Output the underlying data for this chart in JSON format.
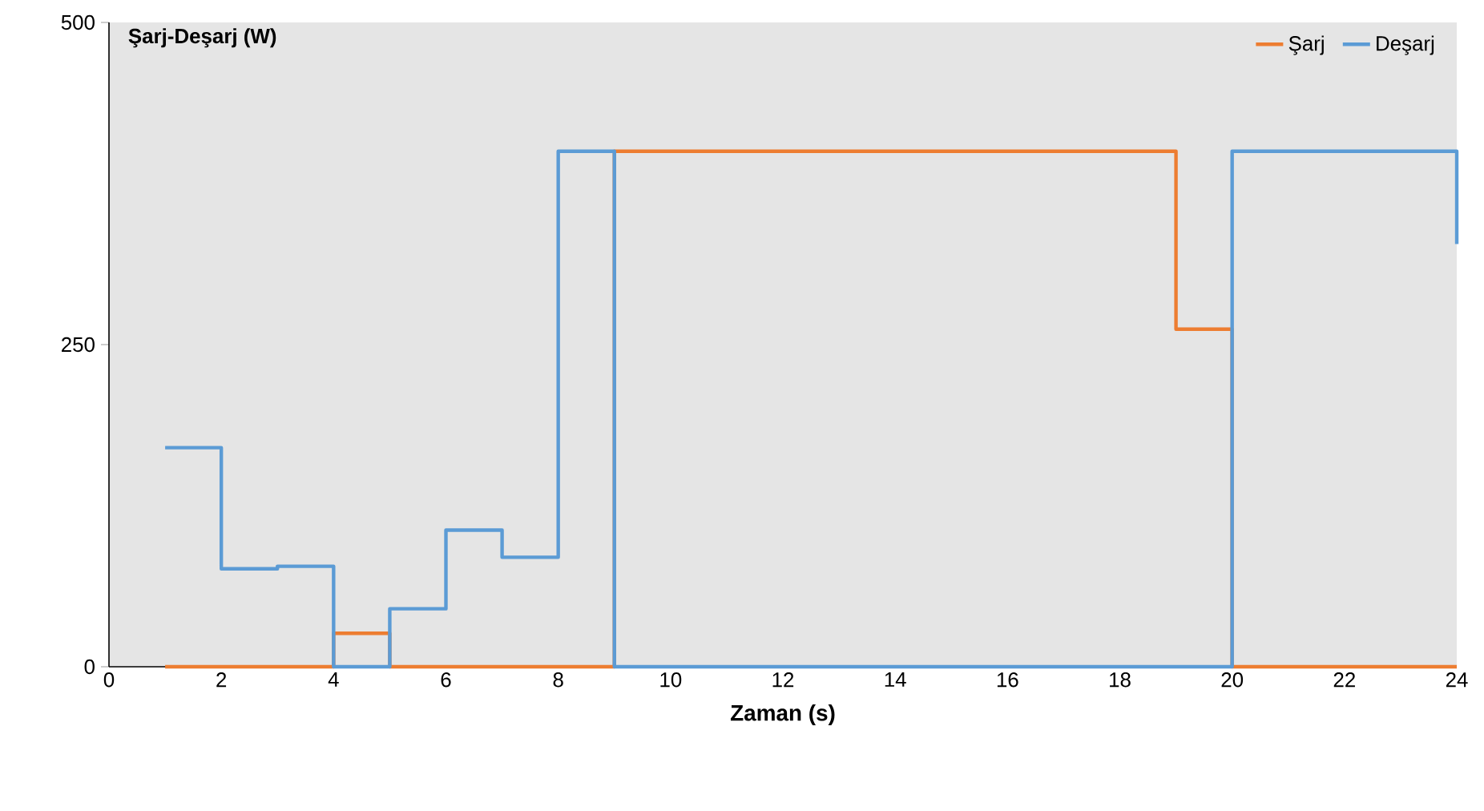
{
  "chart_data": {
    "type": "step",
    "title": "**Şarj-Deşarj (W)**",
    "xlabel": "**Zaman (s)**",
    "x": [
      1,
      2,
      3,
      4,
      5,
      6,
      7,
      8,
      9,
      10,
      11,
      12,
      13,
      14,
      15,
      16,
      17,
      18,
      19,
      20,
      21,
      22,
      23,
      24
    ],
    "series": [
      {
        "name": "Şarj",
        "color": "#ed7d31",
        "values": [
          0,
          0,
          0,
          26,
          0,
          0,
          0,
          0,
          400,
          400,
          400,
          400,
          400,
          400,
          400,
          400,
          400,
          400,
          262,
          0,
          0,
          0,
          0,
          0
        ]
      },
      {
        "name": "Deşarj",
        "color": "#5b9bd5",
        "values": [
          170,
          76,
          78,
          0,
          45,
          106,
          85,
          400,
          0,
          0,
          0,
          0,
          0,
          0,
          0,
          0,
          0,
          0,
          0,
          400,
          400,
          400,
          400,
          328
        ]
      }
    ],
    "xlim": [
      0,
      24
    ],
    "xticks": [
      0,
      2,
      4,
      6,
      8,
      10,
      12,
      14,
      16,
      18,
      20,
      22,
      24
    ],
    "ylim": [
      0,
      500
    ],
    "yticks": [
      0,
      250,
      500
    ],
    "grid": false,
    "legend": "top right",
    "line_style": "solid",
    "marker": "none"
  }
}
